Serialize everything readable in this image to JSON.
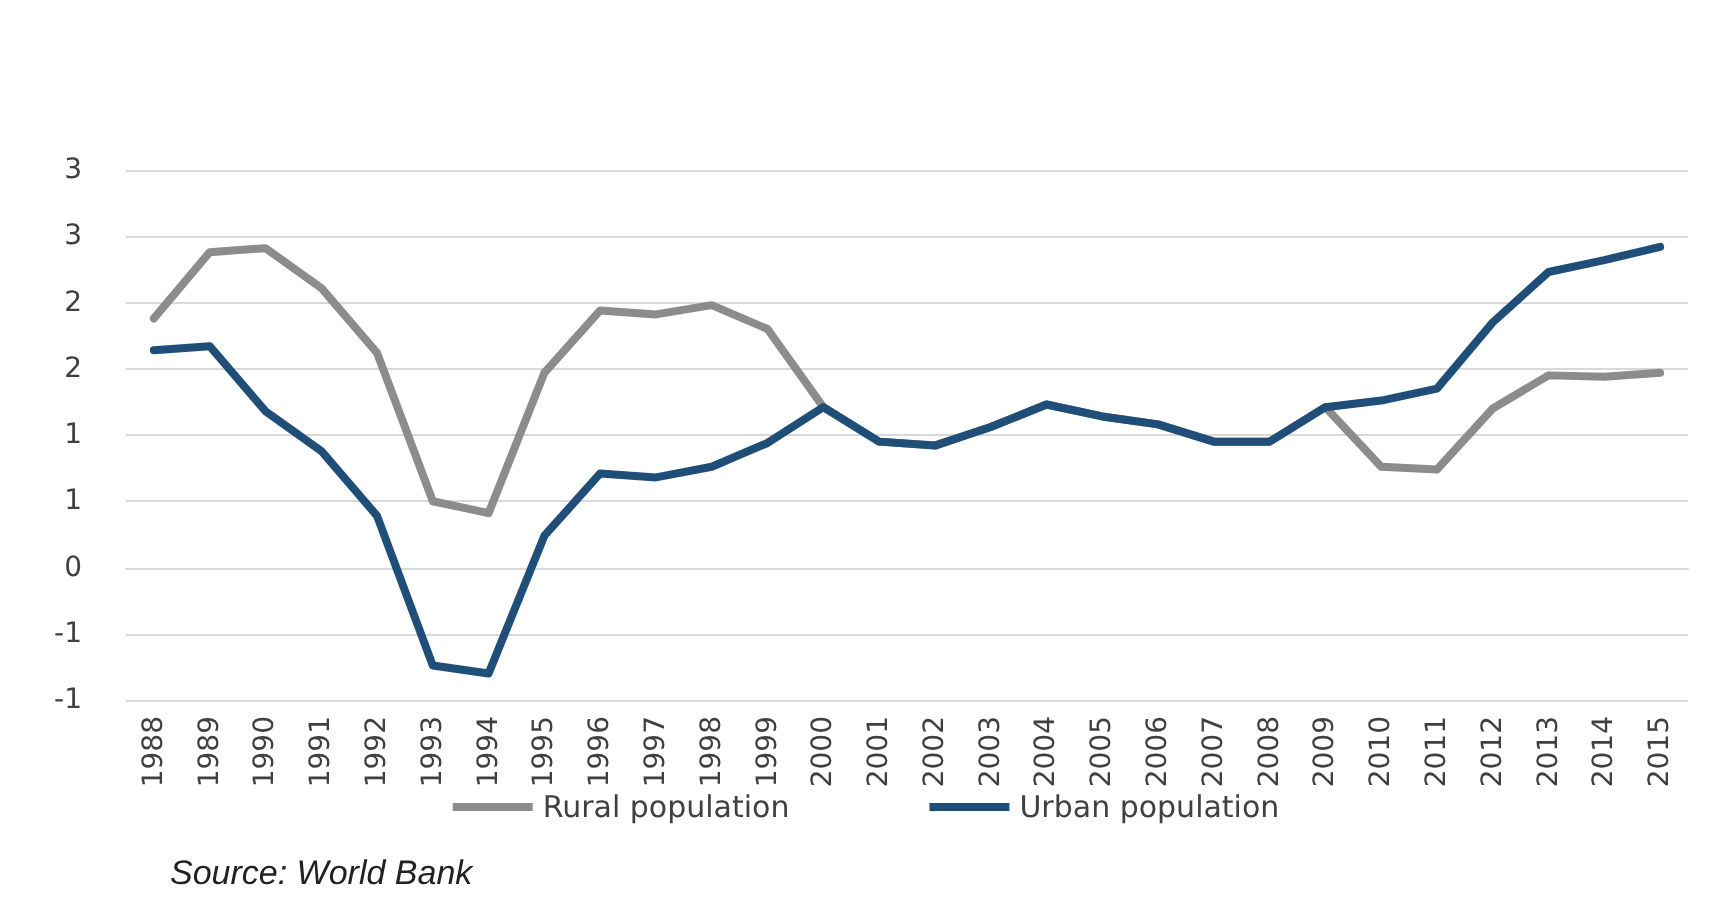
{
  "chart_data": {
    "type": "line",
    "categories": [
      "1988",
      "1989",
      "1990",
      "1991",
      "1992",
      "1993",
      "1994",
      "1995",
      "1996",
      "1997",
      "1998",
      "1999",
      "2000",
      "2001",
      "2002",
      "2003",
      "2004",
      "2005",
      "2006",
      "2007",
      "2008",
      "2009",
      "2010",
      "2011",
      "2012",
      "2013",
      "2014",
      "2015"
    ],
    "series": [
      {
        "name": "Rural population",
        "color": "#8c8c8c",
        "values": [
          1.88,
          2.38,
          2.41,
          2.11,
          1.62,
          0.5,
          0.41,
          1.47,
          1.94,
          1.91,
          1.98,
          1.8,
          1.21,
          0.95,
          0.92,
          1.06,
          1.23,
          1.14,
          1.08,
          0.95,
          0.95,
          1.21,
          0.76,
          0.74,
          1.2,
          1.45,
          1.44,
          1.47
        ]
      },
      {
        "name": "Urban population",
        "color": "#1f4e79",
        "values": [
          1.64,
          1.67,
          1.18,
          0.88,
          0.39,
          -0.74,
          -0.8,
          0.24,
          0.71,
          0.68,
          0.76,
          0.94,
          1.21,
          0.95,
          0.92,
          1.06,
          1.23,
          1.14,
          1.08,
          0.95,
          0.95,
          1.21,
          1.26,
          1.35,
          1.85,
          2.23,
          2.32,
          2.42
        ]
      }
    ],
    "ylim": [
      -1,
      3
    ],
    "yticks": [
      -1,
      {
        "value": -0.5,
        "label": "-1"
      },
      0,
      {
        "value": 0.5,
        "label": "1"
      },
      1,
      {
        "value": 1.5,
        "label": "2"
      },
      2,
      {
        "value": 2.5,
        "label": "3"
      },
      3
    ],
    "grid": "y",
    "legend": "bottom",
    "marker": "none",
    "line_style": "solid",
    "annotations": [
      "Source: World Bank"
    ]
  }
}
